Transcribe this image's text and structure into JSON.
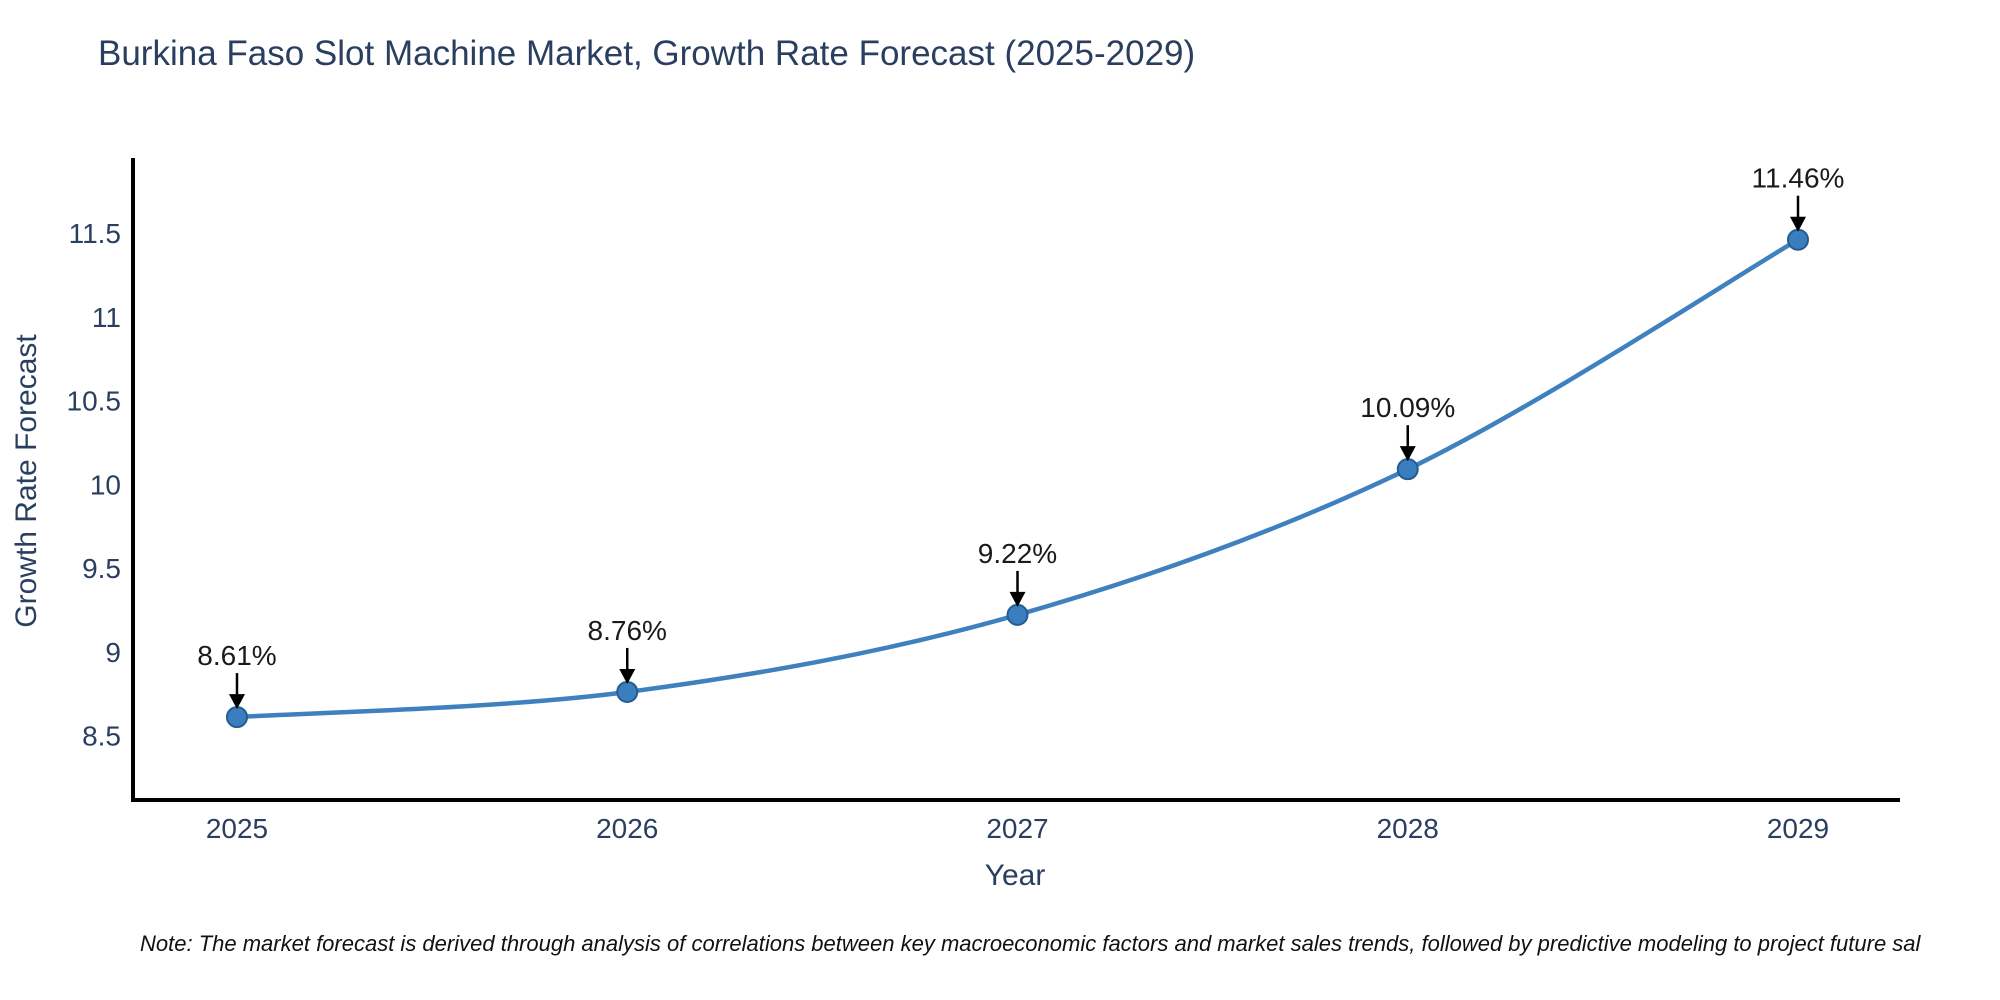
{
  "title": "Burkina Faso Slot Machine Market, Growth Rate Forecast (2025-2029)",
  "note": "Note: The market forecast is derived through analysis of correlations between key macroeconomic factors and market sales trends, followed by predictive modeling to project future sal",
  "chart_data": {
    "type": "line",
    "x": [
      2025,
      2026,
      2027,
      2028,
      2029
    ],
    "series": [
      {
        "name": "Growth Rate Forecast",
        "values": [
          8.61,
          8.76,
          9.22,
          10.09,
          11.46
        ]
      }
    ],
    "point_labels": [
      "8.61%",
      "8.76%",
      "9.22%",
      "10.09%",
      "11.46%"
    ],
    "title": "Burkina Faso Slot Machine Market, Growth Rate Forecast (2025-2029)",
    "xlabel": "Year",
    "ylabel": "Growth Rate Forecast",
    "xticks": [
      "2025",
      "2026",
      "2027",
      "2028",
      "2029"
    ],
    "yticks": [
      8.5,
      9,
      9.5,
      10,
      10.5,
      11,
      11.5
    ],
    "ylim": [
      8.1,
      11.95
    ],
    "grid": false,
    "legend": "none",
    "line_color": "#3f80bf",
    "marker_color": "#3a7ec0",
    "marker_edge_color": "#265c8e",
    "axis_color": "#000000",
    "tick_color": "#2a3f5f",
    "annotation_color": "#1a1a1a"
  }
}
